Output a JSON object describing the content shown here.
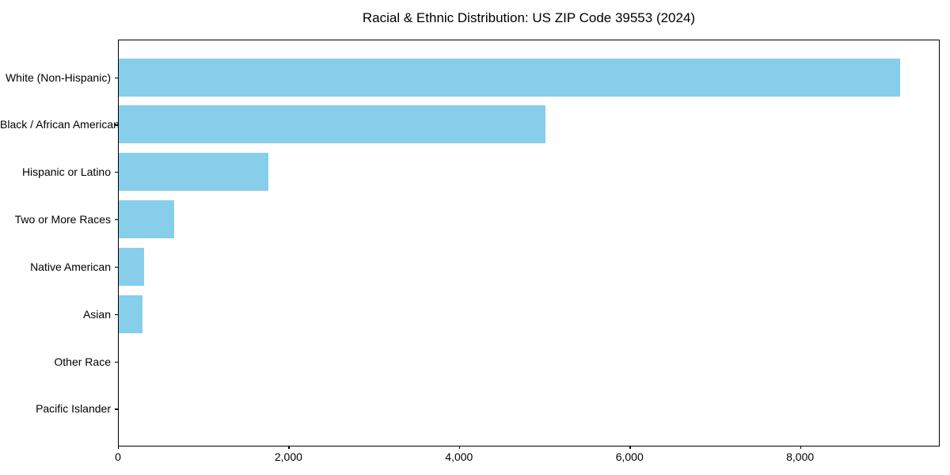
{
  "chart_data": {
    "type": "bar",
    "orientation": "horizontal",
    "title": "Racial & Ethnic Distribution: US ZIP Code 39553 (2024)",
    "categories": [
      "White (Non-Hispanic)",
      "Black / African American",
      "Hispanic or Latino",
      "Two or More Races",
      "Native American",
      "Asian",
      "Other Race",
      "Pacific Islander"
    ],
    "values": [
      9170,
      5015,
      1760,
      660,
      305,
      285,
      12,
      3
    ],
    "xlabel": "",
    "ylabel": "",
    "xlim": [
      0,
      9628
    ],
    "x_ticks": [
      0,
      2000,
      4000,
      6000,
      8000
    ],
    "x_tick_labels": [
      "0",
      "2,000",
      "4,000",
      "6,000",
      "8,000"
    ],
    "bar_color": "#87CEEB",
    "text_color": "#000000",
    "grid": false,
    "legend": null
  }
}
